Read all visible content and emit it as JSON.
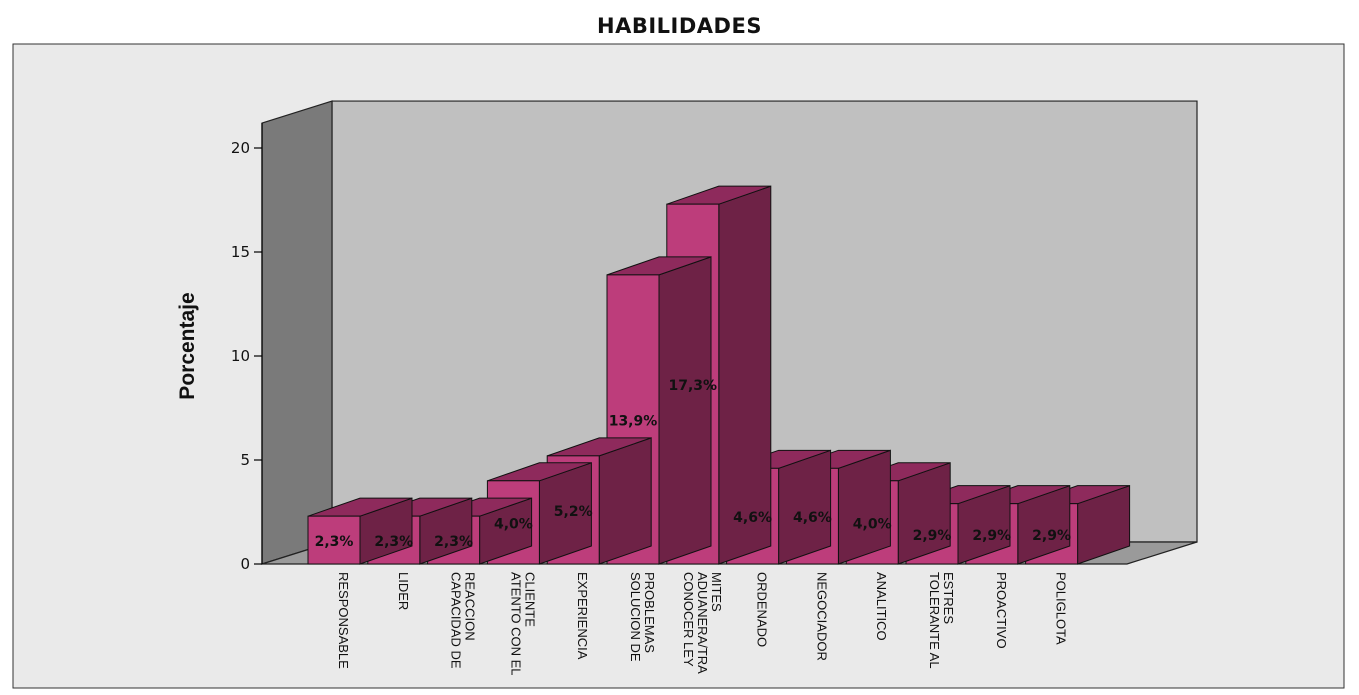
{
  "chart_data": {
    "type": "bar",
    "title": "HABILIDADES",
    "xlabel": "",
    "ylabel": "Porcentaje",
    "ylim": [
      0,
      20
    ],
    "yticks": [
      0,
      5,
      10,
      15,
      20
    ],
    "categories": [
      [
        "RESPONSABLE"
      ],
      [
        "LIDER"
      ],
      [
        "CAPACIDAD DE",
        "REACCION"
      ],
      [
        "ATENTO CON EL",
        "CLIENTE"
      ],
      [
        "EXPERIENCIA"
      ],
      [
        "SOLUCION DE",
        "PROBLEMAS"
      ],
      [
        "CONOCER LEY",
        "ADUANERA/TRA",
        "MITES"
      ],
      [
        "ORDENADO"
      ],
      [
        "NEGOCIADOR"
      ],
      [
        "ANALITICO"
      ],
      [
        "TOLERANTE AL",
        "ESTRES"
      ],
      [
        "PROACTIVO"
      ],
      [
        "POLIGLOTA"
      ]
    ],
    "values": [
      2.3,
      2.3,
      2.3,
      4.0,
      5.2,
      13.9,
      17.3,
      4.6,
      4.6,
      4.0,
      2.9,
      2.9,
      2.9
    ],
    "data_labels": [
      "2,3%",
      "2,3%",
      "2,3%",
      "4,0%",
      "5,2%",
      "13,9%",
      "17,3%",
      "4,6%",
      "4,6%",
      "4,0%",
      "2,9%",
      "2,9%",
      "2,9%"
    ],
    "grid": false,
    "legend": "none",
    "style": "3d",
    "colors": {
      "bar_front": "#bd3d7b",
      "bar_top": "#8e2a5c",
      "bar_side": "#6e2246",
      "plot_back": "#c0c0c0",
      "plot_wall": "#7a7a7a",
      "frame_bg": "#eaeaea"
    }
  }
}
